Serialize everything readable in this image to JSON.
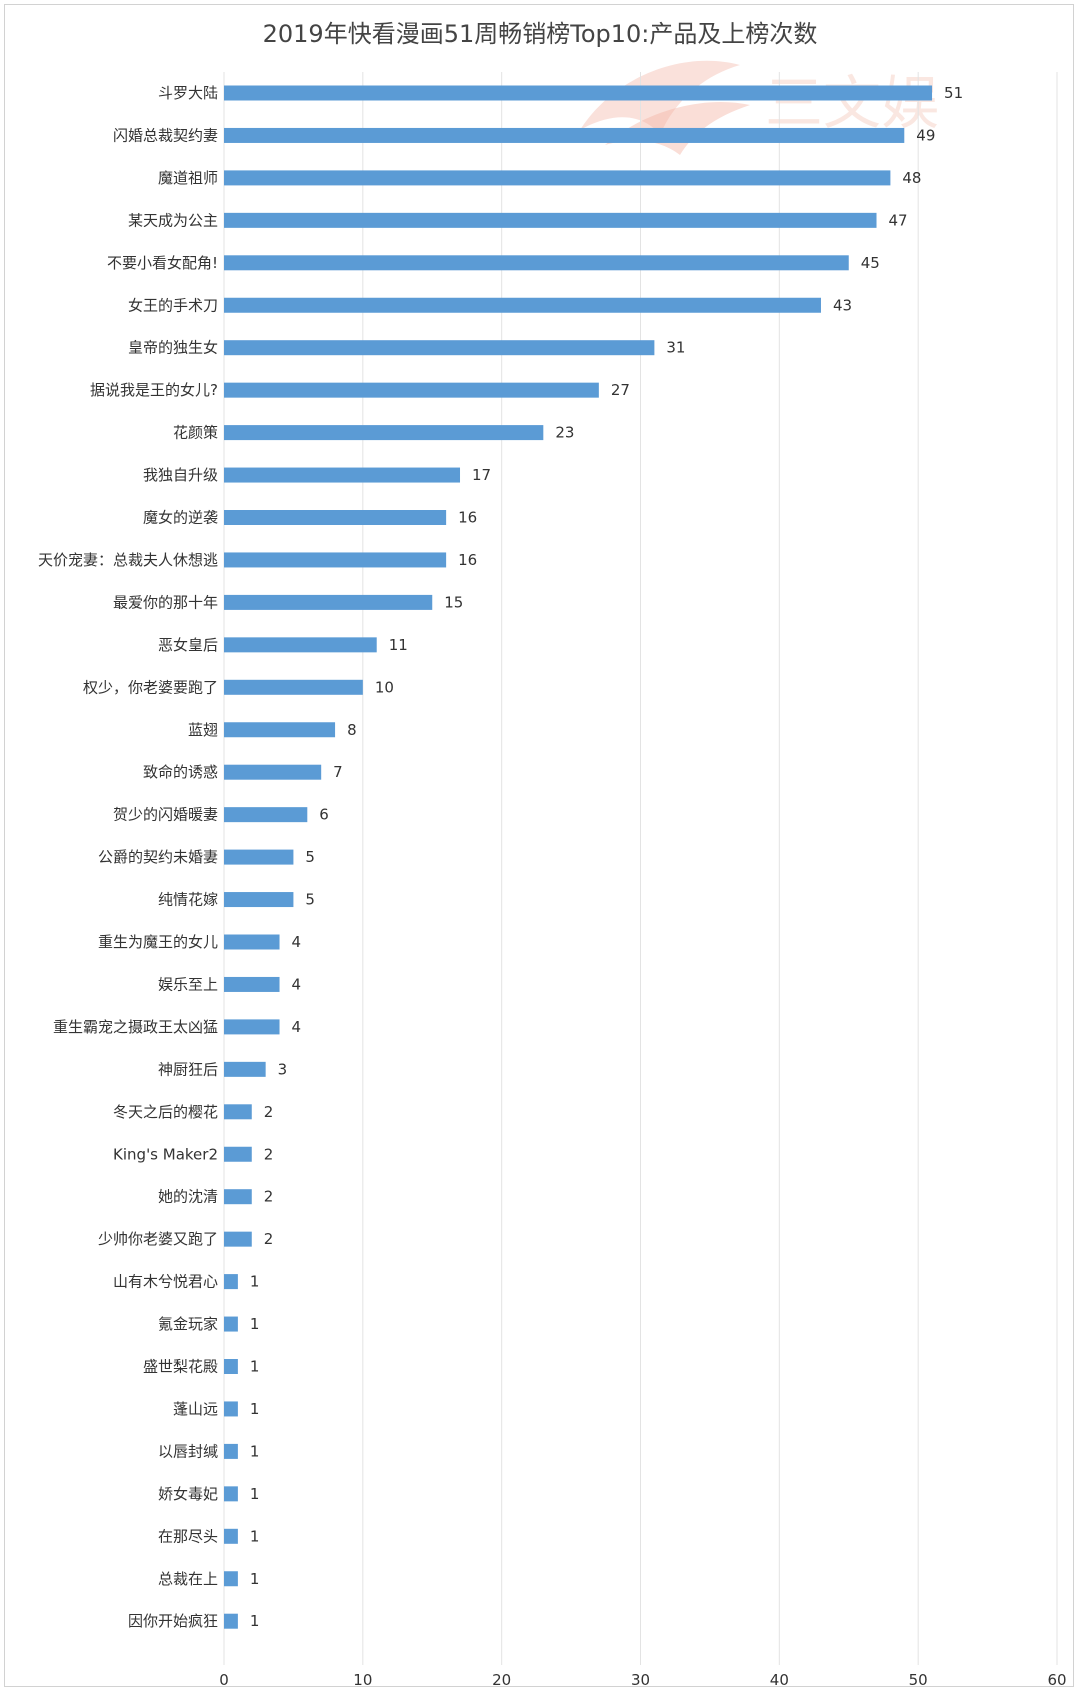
{
  "chart_data": {
    "type": "bar",
    "orientation": "horizontal",
    "title": "2019年快看漫画51周畅销榜Top10:产品及上榜次数",
    "xlabel": "",
    "ylabel": "",
    "xlim": [
      0,
      60
    ],
    "x_ticks": [
      "0",
      "10",
      "20",
      "30",
      "40",
      "50",
      "60"
    ],
    "grid": true,
    "legend": "none",
    "bar_color": "#5b9bd5",
    "watermark": "三文娱",
    "categories": [
      "斗罗大陆",
      "闪婚总裁契约妻",
      "魔道祖师",
      "某天成为公主",
      "不要小看女配角!",
      "女王的手术刀",
      "皇帝的独生女",
      "据说我是王的女儿?",
      "花颜策",
      "我独自升级",
      "魔女的逆袭",
      "天价宠妻：总裁夫人休想逃",
      "最爱你的那十年",
      "恶女皇后",
      "权少，你老婆要跑了",
      "蓝翅",
      "致命的诱惑",
      "贺少的闪婚暖妻",
      "公爵的契约未婚妻",
      "纯情花嫁",
      "重生为魔王的女儿",
      "娱乐至上",
      "重生霸宠之摄政王太凶猛",
      "神厨狂后",
      "冬天之后的樱花",
      "King's Maker2",
      "她的沈清",
      "少帅你老婆又跑了",
      "山有木兮悦君心",
      "氪金玩家",
      "盛世梨花殿",
      "蓬山远",
      "以唇封缄",
      "娇女毒妃",
      "在那尽头",
      "总裁在上",
      "因你开始疯狂"
    ],
    "values": [
      51,
      49,
      48,
      47,
      45,
      43,
      31,
      27,
      23,
      17,
      16,
      16,
      15,
      11,
      10,
      8,
      7,
      6,
      5,
      5,
      4,
      4,
      4,
      3,
      2,
      2,
      2,
      2,
      1,
      1,
      1,
      1,
      1,
      1,
      1,
      1,
      1
    ]
  }
}
